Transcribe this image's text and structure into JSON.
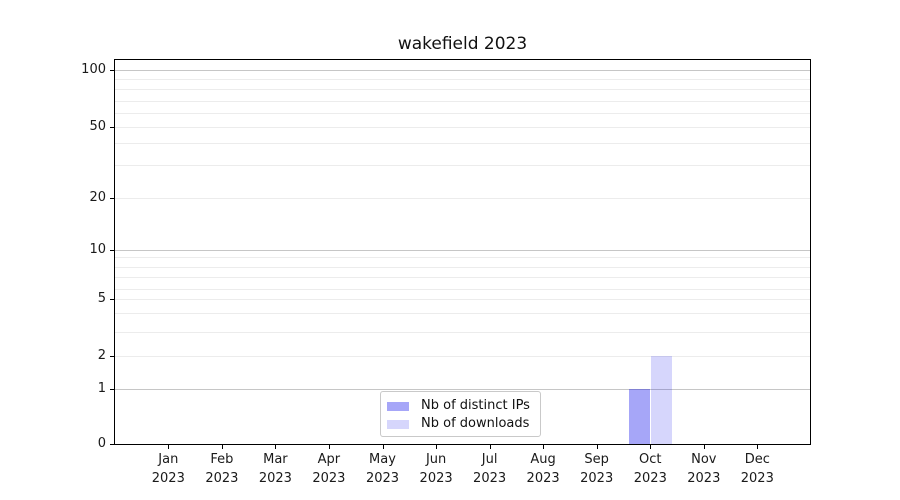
{
  "chart_data": {
    "type": "bar",
    "title": "wakefield 2023",
    "categories": [
      "Jan 2023",
      "Feb 2023",
      "Mar 2023",
      "Apr 2023",
      "May 2023",
      "Jun 2023",
      "Jul 2023",
      "Aug 2023",
      "Sep 2023",
      "Oct 2023",
      "Nov 2023",
      "Dec 2023"
    ],
    "x_tick_lines": [
      [
        "Jan",
        "2023"
      ],
      [
        "Feb",
        "2023"
      ],
      [
        "Mar",
        "2023"
      ],
      [
        "Apr",
        "2023"
      ],
      [
        "May",
        "2023"
      ],
      [
        "Jun",
        "2023"
      ],
      [
        "Jul",
        "2023"
      ],
      [
        "Aug",
        "2023"
      ],
      [
        "Sep",
        "2023"
      ],
      [
        "Oct",
        "2023"
      ],
      [
        "Nov",
        "2023"
      ],
      [
        "Dec",
        "2023"
      ]
    ],
    "series": [
      {
        "name": "Nb of distinct IPs",
        "color": "rgba(0,0,235,0.35)",
        "values": [
          0,
          0,
          0,
          0,
          0,
          0,
          0,
          0,
          0,
          1,
          0,
          0
        ]
      },
      {
        "name": "Nb of downloads",
        "color": "rgba(0,0,235,0.16)",
        "values": [
          0,
          0,
          0,
          0,
          0,
          0,
          0,
          0,
          0,
          2,
          0,
          0
        ]
      }
    ],
    "y_ticks": [
      0,
      1,
      2,
      5,
      10,
      20,
      50,
      100
    ],
    "ylim": [
      0,
      115
    ],
    "yscale": "symlog (linear 0-1, log above 1)",
    "grid": {
      "horizontal_major": true,
      "horizontal_minor": true,
      "vertical": false
    },
    "legend_position": "lower center",
    "colors": {
      "axis": "#000000",
      "grid_major": "#c6c6c6",
      "grid_minor": "#ececec"
    }
  }
}
